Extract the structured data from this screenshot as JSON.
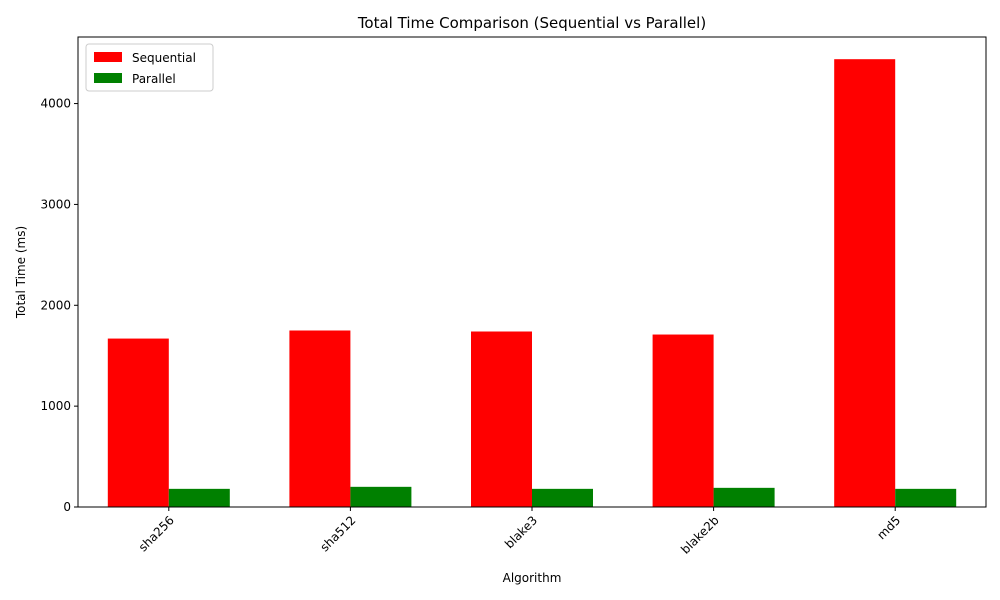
{
  "chart_data": {
    "type": "bar",
    "title": "Total Time Comparison (Sequential vs Parallel)",
    "xlabel": "Algorithm",
    "ylabel": "Total Time (ms)",
    "categories": [
      "sha256",
      "sha512",
      "blake3",
      "blake2b",
      "md5"
    ],
    "series": [
      {
        "name": "Sequential",
        "color": "#ff0000",
        "values": [
          1670,
          1750,
          1740,
          1710,
          4440
        ]
      },
      {
        "name": "Parallel",
        "color": "#008000",
        "values": [
          180,
          200,
          180,
          190,
          180
        ]
      }
    ],
    "ylim": [
      0,
      4660
    ],
    "yticks": [
      0,
      1000,
      2000,
      3000,
      4000
    ],
    "legend": "top-left",
    "grid": false,
    "xtick_rotation": 45
  }
}
